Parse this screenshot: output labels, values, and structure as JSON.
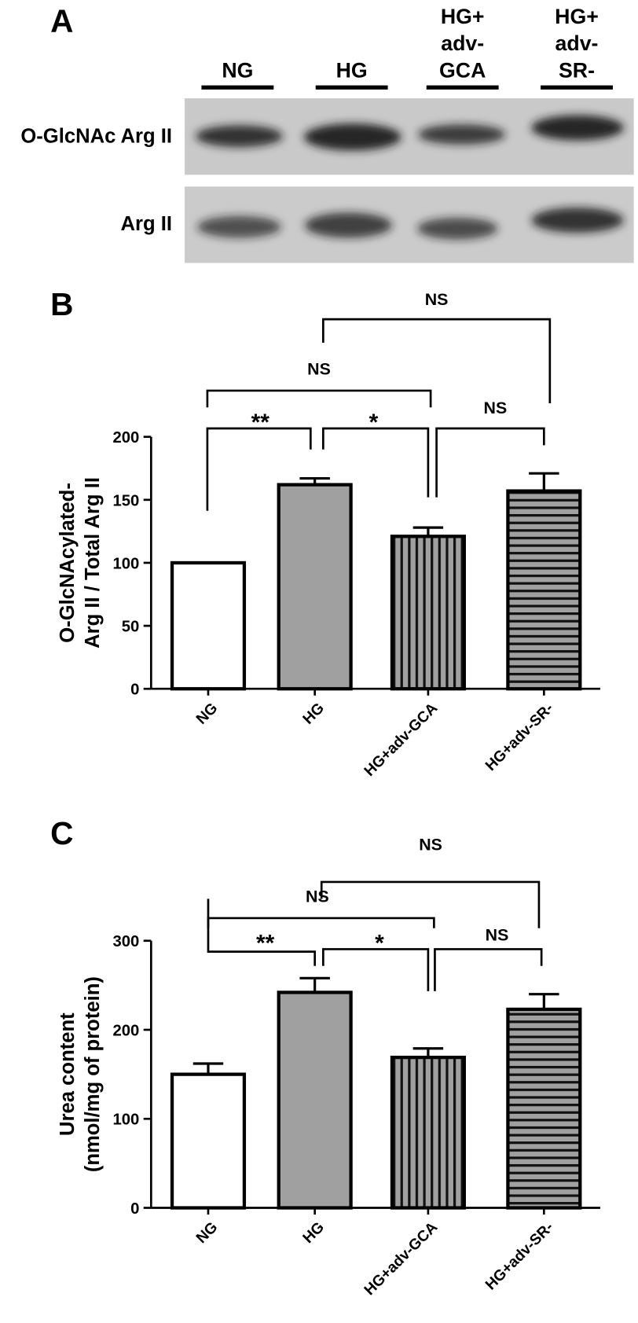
{
  "panel_a": {
    "title": "A",
    "lanes": [
      [
        "NG"
      ],
      [
        "HG"
      ],
      [
        "HG+",
        "adv-",
        "GCA"
      ],
      [
        "HG+",
        "adv-",
        "SR-"
      ]
    ],
    "rows": [
      "O-GlcNAc Arg II",
      "Arg II"
    ]
  },
  "chart_data": [
    {
      "type": "bar",
      "title": "B",
      "y_label": [
        "O-GlcNAcylated-",
        "Arg II / Total Arg II"
      ],
      "categories": [
        "NG",
        "HG",
        "HG+adv-GCA",
        "HG+adv-SR-"
      ],
      "values": [
        100,
        162,
        121,
        157
      ],
      "errors": [
        null,
        5,
        7,
        14
      ],
      "colors": [
        "#ffffff",
        "#a0a0a0",
        "#a0a0a0",
        "#a0a0a0"
      ],
      "hatch": [
        null,
        null,
        "vertical",
        "horizontal"
      ],
      "ylim": [
        0,
        200
      ],
      "yticks": [
        0,
        50,
        100,
        150,
        200
      ],
      "annotations": [
        "**",
        "*",
        "NS",
        "NS",
        "NS"
      ]
    },
    {
      "type": "bar",
      "title": "C",
      "y_label": [
        "Urea content",
        "(nmol/mg of protein)"
      ],
      "categories": [
        "NG",
        "HG",
        "HG+adv-GCA",
        "HG+adv-SR-"
      ],
      "values": [
        150,
        242,
        169,
        223
      ],
      "errors": [
        12,
        16,
        10,
        17
      ],
      "colors": [
        "#ffffff",
        "#a0a0a0",
        "#a0a0a0",
        "#a0a0a0"
      ],
      "hatch": [
        null,
        null,
        "vertical",
        "horizontal"
      ],
      "ylim": [
        0,
        300
      ],
      "yticks": [
        0,
        100,
        200,
        300
      ],
      "annotations": [
        "**",
        "*",
        "NS",
        "NS",
        "NS"
      ]
    }
  ]
}
